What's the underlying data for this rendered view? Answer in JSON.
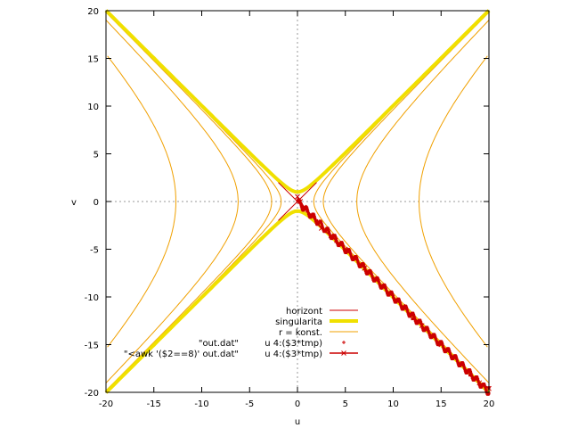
{
  "chart_data": {
    "type": "line",
    "title": "",
    "xlabel": "u",
    "ylabel": "v",
    "xlim": [
      -20,
      20
    ],
    "ylim": [
      -20,
      20
    ],
    "xticks": [
      -20,
      -15,
      -10,
      -5,
      0,
      5,
      10,
      15,
      20
    ],
    "yticks": [
      -20,
      -15,
      -10,
      -5,
      0,
      5,
      10,
      15,
      20
    ],
    "zero_axes": true,
    "grid": false,
    "legend_position": "bottom-center",
    "colors": {
      "horizont": "#cc0000",
      "singularita": "#f0e000",
      "r_konst": "#f0a000",
      "points": "#cc0000"
    },
    "series": [
      {
        "name": "horizont",
        "kind": "line",
        "lines": [
          {
            "x": [
              -2,
              2
            ],
            "y": [
              2,
              -2
            ]
          },
          {
            "x": [
              -2,
              2
            ],
            "y": [
              -2,
              2
            ]
          }
        ]
      },
      {
        "name": "singularita",
        "kind": "hyperbola-vertical",
        "a": 1,
        "branches": [
          "upper",
          "lower"
        ],
        "x_range": [
          -20,
          20
        ]
      },
      {
        "name": "r = konst.",
        "kind": "hyperbola-horizontal",
        "a_values": [
          1.7,
          2.7,
          6.2,
          12.7
        ],
        "y_range": [
          -20,
          20
        ]
      },
      {
        "name": "u 4:($3*tmp)",
        "kind": "points",
        "description_sampled": [
          [
            0.1,
            0.2
          ],
          [
            0.5,
            -0.5
          ],
          [
            1,
            -1
          ],
          [
            2,
            -2
          ],
          [
            3,
            -3
          ],
          [
            4,
            -4.2
          ],
          [
            6,
            -6
          ],
          [
            8,
            -8.2
          ],
          [
            10,
            -10
          ],
          [
            12,
            -12.3
          ],
          [
            14,
            -14.2
          ],
          [
            16,
            -16.1
          ],
          [
            18,
            -18.2
          ],
          [
            20,
            -19.5
          ]
        ]
      },
      {
        "name": "u 4:($3*tmp)",
        "kind": "linespoints",
        "x": [
          0,
          0.3,
          0.7,
          1.5,
          2.5,
          3.5,
          5,
          7,
          9,
          11,
          13,
          15,
          17,
          19,
          20
        ],
        "y": [
          0.5,
          0,
          -0.6,
          -1.5,
          -2.8,
          -3.6,
          -5,
          -7,
          -9,
          -11,
          -13,
          -15,
          -17,
          -19,
          -19.6
        ]
      }
    ],
    "legend_entries": [
      {
        "label": "horizont",
        "column": "right",
        "style": "line"
      },
      {
        "label": "singularita",
        "column": "right",
        "style": "line-thick"
      },
      {
        "label": "r = konst.",
        "column": "right",
        "style": "line-thin"
      },
      {
        "label": "\"out.dat\"",
        "column": "left",
        "paired": "u 4:($3*tmp)",
        "style": "point"
      },
      {
        "label": "\"<awk '($2==8)' out.dat\"",
        "column": "left",
        "paired": "u 4:($3*tmp)",
        "style": "linespoint"
      }
    ]
  }
}
